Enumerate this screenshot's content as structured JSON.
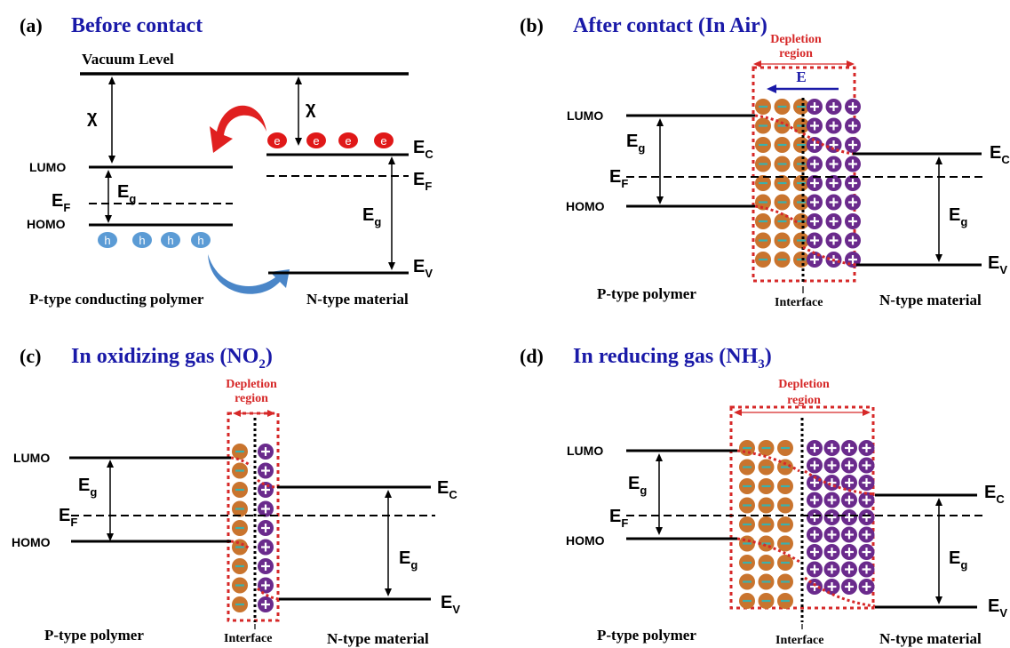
{
  "panels": {
    "a": {
      "letter": "(a)",
      "title": "Before contact",
      "vacuum": "Vacuum Level",
      "chi": "χ",
      "lumo": "LUMO",
      "homo": "HOMO",
      "eg": "E",
      "eg_sub": "g",
      "ef": "E",
      "ef_sub": "F",
      "ec": "E",
      "ec_sub": "C",
      "ev": "E",
      "ev_sub": "V",
      "electron": "e",
      "hole": "h",
      "left_material": "P-type conducting polymer",
      "right_material": "N-type material"
    },
    "b": {
      "letter": "(b)",
      "title": "After contact (In Air)",
      "depletion_line1": "Depletion",
      "depletion_line2": "region",
      "field": "E",
      "lumo": "LUMO",
      "homo": "HOMO",
      "eg": "E",
      "eg_sub": "g",
      "ef": "E",
      "ef_sub": "F",
      "ec": "E",
      "ec_sub": "C",
      "ev": "E",
      "ev_sub": "V",
      "interface": "Interface",
      "left_material": "P-type polymer",
      "right_material": "N-type material"
    },
    "c": {
      "letter": "(c)",
      "title_prefix": "In oxidizing gas (NO",
      "title_sub": "2",
      "title_suffix": ")",
      "depletion_line1": "Depletion",
      "depletion_line2": "region",
      "lumo": "LUMO",
      "homo": "HOMO",
      "eg": "E",
      "eg_sub": "g",
      "ef": "E",
      "ef_sub": "F",
      "ec": "E",
      "ec_sub": "C",
      "ev": "E",
      "ev_sub": "V",
      "interface": "Interface",
      "left_material": "P-type polymer",
      "right_material": "N-type material"
    },
    "d": {
      "letter": "(d)",
      "title_prefix": "In reducing gas (NH",
      "title_sub": "3",
      "title_suffix": ")",
      "depletion_line1": "Depletion",
      "depletion_line2": "region",
      "lumo": "LUMO",
      "homo": "HOMO",
      "eg": "E",
      "eg_sub": "g",
      "ef": "E",
      "ef_sub": "F",
      "ec": "E",
      "ec_sub": "C",
      "ev": "E",
      "ev_sub": "V",
      "interface": "Interface",
      "left_material": "P-type polymer",
      "right_material": "N-type material"
    }
  },
  "colors": {
    "title_blue": "#1a1aa8",
    "depletion_red": "#d62828",
    "hole_orange": "#c9742e",
    "minus_teal": "#3ab1ad",
    "donor_purple": "#6a2a8c",
    "electron_red": "#e01818",
    "hole_blue": "#5b9bd5",
    "arrow_red": "#e02020",
    "arrow_blue": "#4a86c8"
  }
}
